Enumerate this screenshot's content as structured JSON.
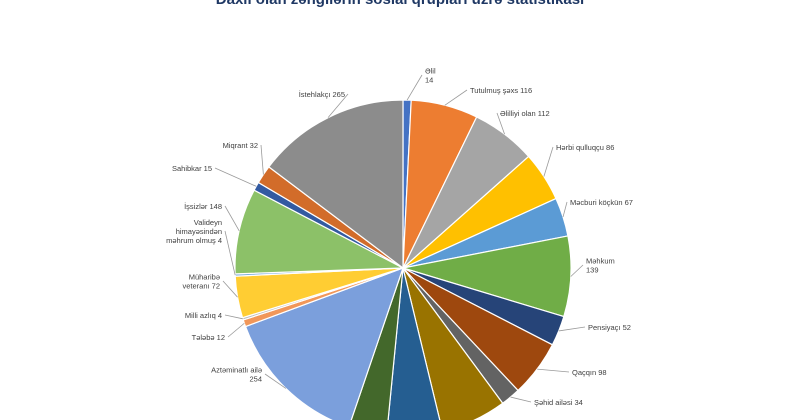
{
  "chart_data": {
    "type": "pie",
    "title": "Daxil olan zəngilərin sosial qrupları üzrə statistikası",
    "start_angle_deg": 0,
    "direction": "clockwise",
    "slices": [
      {
        "label_lines": [
          "Əlil",
          "14"
        ],
        "value": 14,
        "color": "#4472c4"
      },
      {
        "label_lines": [
          "Tutulmuş şəxs 116"
        ],
        "value": 116,
        "color": "#ed7d31"
      },
      {
        "label_lines": [
          "Əlilliyi olan 112"
        ],
        "value": 112,
        "color": "#a5a5a5"
      },
      {
        "label_lines": [
          "Hərbi qulluqçu 86"
        ],
        "value": 86,
        "color": "#ffc000"
      },
      {
        "label_lines": [
          "Məcburi köçkün 67"
        ],
        "value": 67,
        "color": "#5b9bd5"
      },
      {
        "label_lines": [
          "Məhkum",
          "139"
        ],
        "value": 139,
        "color": "#70ad47"
      },
      {
        "label_lines": [
          "Pensiyaçı 52"
        ],
        "value": 52,
        "color": "#264478"
      },
      {
        "label_lines": [
          "Qaçqın 98"
        ],
        "value": 98,
        "color": "#9e480e"
      },
      {
        "label_lines": [
          "Şəhid ailəsi 34"
        ],
        "value": 34,
        "color": "#636363"
      },
      {
        "label_lines": [],
        "value": 114,
        "color": "#997300"
      },
      {
        "label_lines": [],
        "value": 96,
        "color": "#255e91"
      },
      {
        "label_lines": [],
        "value": 66,
        "color": "#43682b"
      },
      {
        "label_lines": [
          "Aztəminatlı ailə",
          "254"
        ],
        "value": 254,
        "color": "#7b9fdc"
      },
      {
        "label_lines": [
          "Tələbə 12"
        ],
        "value": 12,
        "color": "#f1975a"
      },
      {
        "label_lines": [
          "Milli azlıq 4"
        ],
        "value": 4,
        "color": "#bdbdbd"
      },
      {
        "label_lines": [
          "Müharibə",
          "veteranı 72"
        ],
        "value": 72,
        "color": "#ffcd33"
      },
      {
        "label_lines": [
          "Valideyn",
          "himayəsindən",
          "məhrum olmuş 4"
        ],
        "value": 4,
        "color": "#7baedf"
      },
      {
        "label_lines": [
          "İşsizlər 148"
        ],
        "value": 148,
        "color": "#8cc168"
      },
      {
        "label_lines": [
          "Sahibkar 15"
        ],
        "value": 15,
        "color": "#335aa1"
      },
      {
        "label_lines": [
          "Miqrant 32"
        ],
        "value": 32,
        "color": "#d26c2a"
      },
      {
        "label_lines": [
          "İstehlakçı 265"
        ],
        "value": 265,
        "color": "#8c8c8c"
      }
    ]
  }
}
